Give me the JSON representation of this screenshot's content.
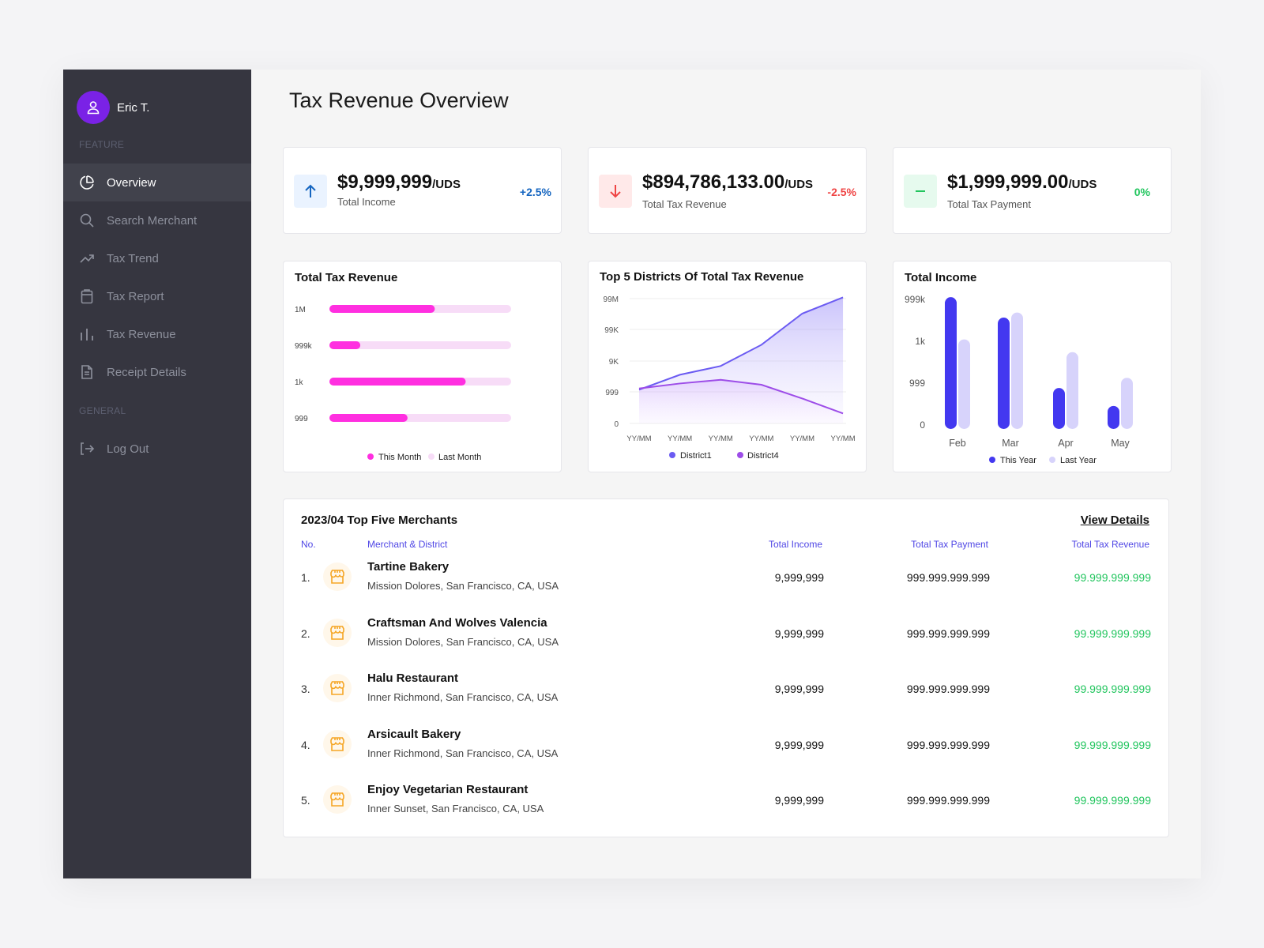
{
  "user": {
    "name": "Eric T."
  },
  "sidebar": {
    "feature_label": "FEATURE",
    "general_label": "GENERAL",
    "items": [
      {
        "label": "Overview",
        "icon": "pie-chart-icon",
        "active": true
      },
      {
        "label": "Search Merchant",
        "icon": "search-icon"
      },
      {
        "label": "Tax Trend",
        "icon": "trend-up-icon"
      },
      {
        "label": "Tax Report",
        "icon": "clipboard-icon"
      },
      {
        "label": "Tax Revenue",
        "icon": "bar-chart-icon"
      },
      {
        "label": "Receipt Details",
        "icon": "document-icon"
      }
    ],
    "logout_label": "Log Out"
  },
  "page": {
    "title": "Tax Revenue Overview"
  },
  "stats": [
    {
      "value": "$9,999,999",
      "unit": "/UDS",
      "label": "Total Income",
      "change": "+2.5%",
      "trend": "up",
      "color": "#1565c0",
      "bg": "#eaf3ff"
    },
    {
      "value": "$894,786,133.00",
      "unit": "/UDS",
      "label": "Total Tax Revenue",
      "change": "-2.5%",
      "trend": "down",
      "color": "#ef4444",
      "bg": "#ffe9e9"
    },
    {
      "value": "$1,999,999.00",
      "unit": "/UDS",
      "label": "Total Tax Payment",
      "change": "0%",
      "trend": "flat",
      "color": "#22c55e",
      "bg": "#e6faee"
    }
  ],
  "chart_data": [
    {
      "type": "bar",
      "orientation": "horizontal",
      "title": "Total Tax Revenue",
      "categories": [
        "1M",
        "999k",
        "1k",
        "999"
      ],
      "series": [
        {
          "name": "This Month",
          "values": [
            0.58,
            0.17,
            0.75,
            0.43
          ],
          "color": "#ff2fe0"
        },
        {
          "name": "Last Month",
          "values": [
            1,
            1,
            1,
            1
          ],
          "color": "#f7dcf7"
        }
      ],
      "legend": "bottom"
    },
    {
      "type": "line",
      "title": "Top 5 Districts Of Total Tax Revenue",
      "x": [
        "YY/MM",
        "YY/MM",
        "YY/MM",
        "YY/MM",
        "YY/MM",
        "YY/MM"
      ],
      "yticks": [
        "99M",
        "99K",
        "9K",
        "999",
        "0"
      ],
      "series": [
        {
          "name": "District1",
          "values": [
            0.27,
            0.39,
            0.46,
            0.63,
            0.88,
            1.01
          ],
          "color": "#6b5bf2"
        },
        {
          "name": "District4",
          "values": [
            0.28,
            0.32,
            0.35,
            0.31,
            0.2,
            0.08
          ],
          "color": "#9d4de8"
        }
      ],
      "legend": "bottom"
    },
    {
      "type": "bar",
      "title": "Total Income",
      "categories": [
        "Feb",
        "Mar",
        "Apr",
        "May"
      ],
      "yticks": [
        "999k",
        "1k",
        "999",
        "0"
      ],
      "series": [
        {
          "name": "This Year",
          "values": [
            1.03,
            0.87,
            0.32,
            0.18
          ],
          "color": "#4338f0"
        },
        {
          "name": "Last Year",
          "values": [
            0.7,
            0.91,
            0.6,
            0.4
          ],
          "color": "#d7d3fb"
        }
      ],
      "legend": "bottom"
    }
  ],
  "table": {
    "title": "2023/04 Top Five Merchants",
    "view_details": "View Details",
    "headers": {
      "no": "No.",
      "merchant": "Merchant & District",
      "income": "Total Income",
      "payment": "Total Tax Payment",
      "revenue": "Total Tax Revenue"
    },
    "rows": [
      {
        "no": "1.",
        "name": "Tartine Bakery",
        "district": "Mission Dolores, San Francisco, CA, USA",
        "income": "9,999,999",
        "payment": "999.999.999.999",
        "revenue": "99.999.999.999"
      },
      {
        "no": "2.",
        "name": "Craftsman And Wolves Valencia",
        "district": "Mission Dolores, San Francisco, CA, USA",
        "income": "9,999,999",
        "payment": "999.999.999.999",
        "revenue": "99.999.999.999"
      },
      {
        "no": "3.",
        "name": "Halu Restaurant",
        "district": "Inner Richmond, San Francisco, CA, USA",
        "income": "9,999,999",
        "payment": "999.999.999.999",
        "revenue": "99.999.999.999"
      },
      {
        "no": "4.",
        "name": "Arsicault Bakery",
        "district": "Inner Richmond, San Francisco, CA, USA",
        "income": "9,999,999",
        "payment": "999.999.999.999",
        "revenue": "99.999.999.999"
      },
      {
        "no": "5.",
        "name": "Enjoy Vegetarian Restaurant",
        "district": "Inner Sunset, San Francisco, CA, USA",
        "income": "9,999,999",
        "payment": "999.999.999.999",
        "revenue": "99.999.999.999"
      }
    ]
  }
}
